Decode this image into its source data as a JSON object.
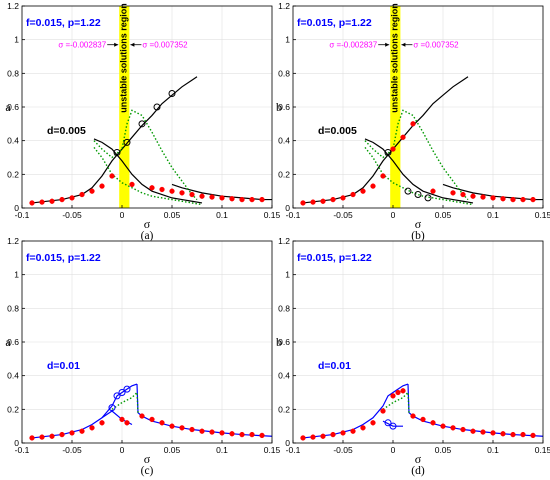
{
  "chart_data": [
    {
      "type": "line",
      "caption": "(a)",
      "xlabel": "σ",
      "ylabel": "a",
      "xlim": [
        -0.1,
        0.15
      ],
      "ylim": [
        0,
        1.2
      ],
      "xticks": [
        -0.1,
        -0.05,
        0,
        0.05,
        0.1,
        0.15
      ],
      "yticks": [
        0,
        0.2,
        0.4,
        0.6,
        0.8,
        1,
        1.2
      ],
      "xticklabels": [
        "-0.1",
        "-0.05",
        "0",
        "0.05",
        "0.1",
        "0.15"
      ],
      "yticklabels": [
        "0",
        "0.2",
        "0.4",
        "0.6",
        "0.8",
        "1",
        "1.2"
      ],
      "params_label": "f=0.015, p=1.22",
      "d_label": "d=0.005",
      "band": {
        "x0": -0.0028,
        "x1": 0.0074,
        "label": "unstable solutions region",
        "color": "#ffff00"
      },
      "sigma_labels": [
        "σ =-0.002837",
        "σ =0.007352"
      ],
      "curve_color": "#000000",
      "marker_color": "#000000",
      "series": [
        {
          "style": "upper",
          "x": [
            -0.09,
            -0.06,
            -0.04,
            -0.03,
            -0.02,
            -0.01,
            0.0,
            0.01,
            0.02,
            0.03,
            0.04,
            0.05,
            0.06,
            0.07,
            0.075
          ],
          "y": [
            0.03,
            0.05,
            0.08,
            0.12,
            0.19,
            0.28,
            0.35,
            0.42,
            0.49,
            0.55,
            0.62,
            0.67,
            0.72,
            0.76,
            0.78
          ]
        },
        {
          "style": "lower",
          "x": [
            -0.028,
            -0.02,
            -0.01,
            0.0,
            0.01,
            0.02,
            0.03,
            0.04,
            0.05,
            0.06,
            0.07,
            0.08
          ],
          "y": [
            0.41,
            0.39,
            0.35,
            0.28,
            0.2,
            0.14,
            0.1,
            0.08,
            0.06,
            0.05,
            0.04,
            0.03
          ]
        },
        {
          "style": "tail",
          "x": [
            0.05,
            0.06,
            0.08,
            0.1,
            0.12,
            0.14,
            0.15
          ],
          "y": [
            0.14,
            0.12,
            0.09,
            0.07,
            0.06,
            0.05,
            0.05
          ]
        },
        {
          "style": "green",
          "x": [
            -0.028,
            -0.02,
            -0.01,
            0.0,
            0.005,
            0.01,
            0.02,
            0.03,
            0.04,
            0.05,
            0.06,
            0.07,
            0.075
          ],
          "y": [
            0.4,
            0.35,
            0.3,
            0.35,
            0.5,
            0.58,
            0.55,
            0.45,
            0.34,
            0.24,
            0.16,
            0.08,
            0.05
          ]
        },
        {
          "style": "green",
          "x": [
            -0.028,
            -0.02,
            -0.01,
            0.0,
            0.01,
            0.02,
            0.03,
            0.05,
            0.07,
            0.08
          ],
          "y": [
            0.36,
            0.3,
            0.2,
            0.15,
            0.12,
            0.09,
            0.07,
            0.05,
            0.03,
            0.02
          ]
        }
      ],
      "markers_red": {
        "x": [
          -0.09,
          -0.08,
          -0.07,
          -0.06,
          -0.05,
          -0.04,
          -0.03,
          -0.02,
          -0.01,
          0.01,
          0.03,
          0.04,
          0.05,
          0.06,
          0.07,
          0.08,
          0.09,
          0.1,
          0.11,
          0.12,
          0.13,
          0.14
        ],
        "y": [
          0.03,
          0.035,
          0.04,
          0.05,
          0.06,
          0.08,
          0.1,
          0.13,
          0.19,
          0.14,
          0.12,
          0.11,
          0.1,
          0.09,
          0.08,
          0.07,
          0.065,
          0.06,
          0.055,
          0.05,
          0.05,
          0.05
        ]
      },
      "markers_open": {
        "x": [
          -0.005,
          0.005,
          0.02,
          0.035,
          0.05
        ],
        "y": [
          0.33,
          0.39,
          0.5,
          0.6,
          0.68
        ]
      }
    },
    {
      "type": "line",
      "caption": "(b)",
      "xlabel": "σ",
      "ylabel": "b",
      "xlim": [
        -0.1,
        0.15
      ],
      "ylim": [
        0,
        1.2
      ],
      "xticks": [
        -0.1,
        -0.05,
        0,
        0.05,
        0.1,
        0.15
      ],
      "yticks": [
        0,
        0.2,
        0.4,
        0.6,
        0.8,
        1,
        1.2
      ],
      "xticklabels": [
        "-0.1",
        "-0.05",
        "0",
        "0.05",
        "0.1",
        "0.15"
      ],
      "yticklabels": [
        "0",
        "0.2",
        "0.4",
        "0.6",
        "0.8",
        "1",
        "1.2"
      ],
      "params_label": "f=0.015, p=1.22",
      "d_label": "d=0.005",
      "band": {
        "x0": -0.0028,
        "x1": 0.0074,
        "label": "unstable solutions region",
        "color": "#ffff00"
      },
      "sigma_labels": [
        "σ =-0.002837",
        "σ =0.007352"
      ],
      "curve_color": "#000000",
      "marker_color": "#000000",
      "series": [
        {
          "style": "upper",
          "x": [
            -0.09,
            -0.06,
            -0.04,
            -0.03,
            -0.02,
            -0.01,
            0.0,
            0.01,
            0.02,
            0.03,
            0.04,
            0.05,
            0.06,
            0.07,
            0.075
          ],
          "y": [
            0.03,
            0.05,
            0.08,
            0.12,
            0.19,
            0.28,
            0.35,
            0.42,
            0.49,
            0.55,
            0.62,
            0.67,
            0.72,
            0.76,
            0.78
          ]
        },
        {
          "style": "lower",
          "x": [
            -0.028,
            -0.02,
            -0.01,
            0.0,
            0.01,
            0.02,
            0.03,
            0.04,
            0.05,
            0.06,
            0.07,
            0.08
          ],
          "y": [
            0.41,
            0.39,
            0.35,
            0.28,
            0.2,
            0.14,
            0.1,
            0.08,
            0.06,
            0.05,
            0.04,
            0.03
          ]
        },
        {
          "style": "tail",
          "x": [
            0.05,
            0.06,
            0.08,
            0.1,
            0.12,
            0.14,
            0.15
          ],
          "y": [
            0.14,
            0.12,
            0.09,
            0.07,
            0.06,
            0.05,
            0.05
          ]
        },
        {
          "style": "green",
          "x": [
            -0.028,
            -0.02,
            -0.01,
            0.0,
            0.005,
            0.01,
            0.02,
            0.03,
            0.04,
            0.05,
            0.06,
            0.07,
            0.075
          ],
          "y": [
            0.4,
            0.35,
            0.3,
            0.35,
            0.5,
            0.58,
            0.55,
            0.45,
            0.34,
            0.24,
            0.16,
            0.08,
            0.05
          ]
        },
        {
          "style": "green",
          "x": [
            -0.028,
            -0.02,
            -0.01,
            0.0,
            0.01,
            0.02,
            0.03,
            0.05,
            0.07,
            0.08
          ],
          "y": [
            0.36,
            0.3,
            0.2,
            0.15,
            0.12,
            0.09,
            0.07,
            0.05,
            0.03,
            0.02
          ]
        }
      ],
      "markers_red": {
        "x": [
          -0.09,
          -0.08,
          -0.07,
          -0.06,
          -0.05,
          -0.04,
          -0.03,
          -0.02,
          -0.01,
          0.0,
          0.01,
          0.02,
          0.04,
          0.06,
          0.07,
          0.08,
          0.09,
          0.1,
          0.11,
          0.12,
          0.13,
          0.14
        ],
        "y": [
          0.03,
          0.035,
          0.04,
          0.05,
          0.06,
          0.08,
          0.1,
          0.13,
          0.19,
          0.35,
          0.42,
          0.5,
          0.1,
          0.09,
          0.08,
          0.07,
          0.065,
          0.06,
          0.055,
          0.05,
          0.05,
          0.05
        ]
      },
      "markers_open": {
        "x": [
          -0.005,
          0.015,
          0.025,
          0.035
        ],
        "y": [
          0.33,
          0.1,
          0.08,
          0.06
        ]
      }
    },
    {
      "type": "line",
      "caption": "(c)",
      "xlabel": "σ",
      "ylabel": "a",
      "xlim": [
        -0.1,
        0.15
      ],
      "ylim": [
        0,
        1.2
      ],
      "xticks": [
        -0.1,
        -0.05,
        0,
        0.05,
        0.1,
        0.15
      ],
      "yticks": [
        0,
        0.2,
        0.4,
        0.6,
        0.8,
        1,
        1.2
      ],
      "xticklabels": [
        "-0.1",
        "-0.05",
        "0",
        "0.05",
        "0.1",
        "0.15"
      ],
      "yticklabels": [
        "0",
        "0.2",
        "0.4",
        "0.6",
        "0.8",
        "1",
        "1.2"
      ],
      "params_label": "f=0.015, p=1.22",
      "d_label": "d=0.01",
      "curve_color": "#0000ff",
      "marker_color": "#0000ff",
      "series": [
        {
          "style": "upper",
          "x": [
            -0.09,
            -0.06,
            -0.04,
            -0.03,
            -0.02,
            -0.01,
            -0.005,
            0.0,
            0.005,
            0.01,
            0.015
          ],
          "y": [
            0.03,
            0.05,
            0.08,
            0.11,
            0.15,
            0.22,
            0.28,
            0.3,
            0.32,
            0.34,
            0.35
          ]
        },
        {
          "style": "lower",
          "x": [
            0.015,
            0.016,
            0.02,
            0.03,
            0.05,
            0.07,
            0.1,
            0.12,
            0.15
          ],
          "y": [
            0.35,
            0.18,
            0.16,
            0.13,
            0.1,
            0.08,
            0.06,
            0.05,
            0.04
          ]
        },
        {
          "style": "tail",
          "x": [
            -0.02,
            -0.01,
            0.0,
            0.01
          ],
          "y": [
            0.15,
            0.19,
            0.14,
            0.11
          ]
        },
        {
          "style": "green",
          "x": [
            -0.01,
            0.0,
            0.01,
            0.015,
            0.016
          ],
          "y": [
            0.2,
            0.24,
            0.27,
            0.3,
            0.18
          ]
        }
      ],
      "markers_red": {
        "x": [
          -0.09,
          -0.08,
          -0.07,
          -0.06,
          -0.05,
          -0.04,
          -0.03,
          -0.02,
          0.0,
          0.005,
          0.02,
          0.03,
          0.04,
          0.05,
          0.06,
          0.07,
          0.08,
          0.09,
          0.1,
          0.11,
          0.12,
          0.13,
          0.14
        ],
        "y": [
          0.03,
          0.035,
          0.04,
          0.05,
          0.06,
          0.07,
          0.09,
          0.12,
          0.14,
          0.12,
          0.16,
          0.14,
          0.12,
          0.1,
          0.09,
          0.08,
          0.07,
          0.065,
          0.06,
          0.055,
          0.05,
          0.05,
          0.045
        ]
      },
      "markers_open": {
        "x": [
          -0.01,
          -0.005,
          0.0,
          0.005
        ],
        "y": [
          0.21,
          0.28,
          0.3,
          0.32
        ]
      }
    },
    {
      "type": "line",
      "caption": "(d)",
      "xlabel": "σ",
      "ylabel": "b",
      "xlim": [
        -0.1,
        0.15
      ],
      "ylim": [
        0,
        1.2
      ],
      "xticks": [
        -0.1,
        -0.05,
        0,
        0.05,
        0.1,
        0.15
      ],
      "yticks": [
        0,
        0.2,
        0.4,
        0.6,
        0.8,
        1,
        1.2
      ],
      "xticklabels": [
        "-0.1",
        "-0.05",
        "0",
        "0.05",
        "0.1",
        "0.15"
      ],
      "yticklabels": [
        "0",
        "0.2",
        "0.4",
        "0.6",
        "0.8",
        "1",
        "1.2"
      ],
      "params_label": "f=0.015, p=1.22",
      "d_label": "d=0.01",
      "curve_color": "#0000ff",
      "marker_color": "#0000ff",
      "series": [
        {
          "style": "upper",
          "x": [
            -0.09,
            -0.06,
            -0.04,
            -0.03,
            -0.02,
            -0.01,
            -0.005,
            0.0,
            0.005,
            0.01,
            0.015
          ],
          "y": [
            0.03,
            0.05,
            0.08,
            0.11,
            0.15,
            0.22,
            0.28,
            0.3,
            0.32,
            0.34,
            0.35
          ]
        },
        {
          "style": "lower",
          "x": [
            0.015,
            0.016,
            0.02,
            0.03,
            0.05,
            0.07,
            0.1,
            0.12,
            0.15
          ],
          "y": [
            0.35,
            0.18,
            0.16,
            0.13,
            0.1,
            0.08,
            0.06,
            0.05,
            0.04
          ]
        },
        {
          "style": "tail",
          "x": [
            -0.01,
            0.0,
            0.01
          ],
          "y": [
            0.13,
            0.1,
            0.1
          ]
        },
        {
          "style": "green",
          "x": [
            -0.01,
            0.0,
            0.01,
            0.015,
            0.016
          ],
          "y": [
            0.2,
            0.24,
            0.27,
            0.3,
            0.18
          ]
        }
      ],
      "markers_red": {
        "x": [
          -0.09,
          -0.08,
          -0.07,
          -0.06,
          -0.05,
          -0.04,
          -0.03,
          -0.02,
          -0.01,
          0.0,
          0.005,
          0.01,
          0.02,
          0.03,
          0.04,
          0.05,
          0.06,
          0.07,
          0.08,
          0.09,
          0.1,
          0.11,
          0.12,
          0.13,
          0.14
        ],
        "y": [
          0.03,
          0.035,
          0.04,
          0.05,
          0.06,
          0.07,
          0.09,
          0.12,
          0.19,
          0.28,
          0.3,
          0.31,
          0.16,
          0.14,
          0.12,
          0.1,
          0.09,
          0.08,
          0.07,
          0.065,
          0.06,
          0.055,
          0.05,
          0.05,
          0.045
        ]
      },
      "markers_open": {
        "x": [
          -0.005,
          0.0
        ],
        "y": [
          0.12,
          0.1
        ]
      }
    }
  ]
}
